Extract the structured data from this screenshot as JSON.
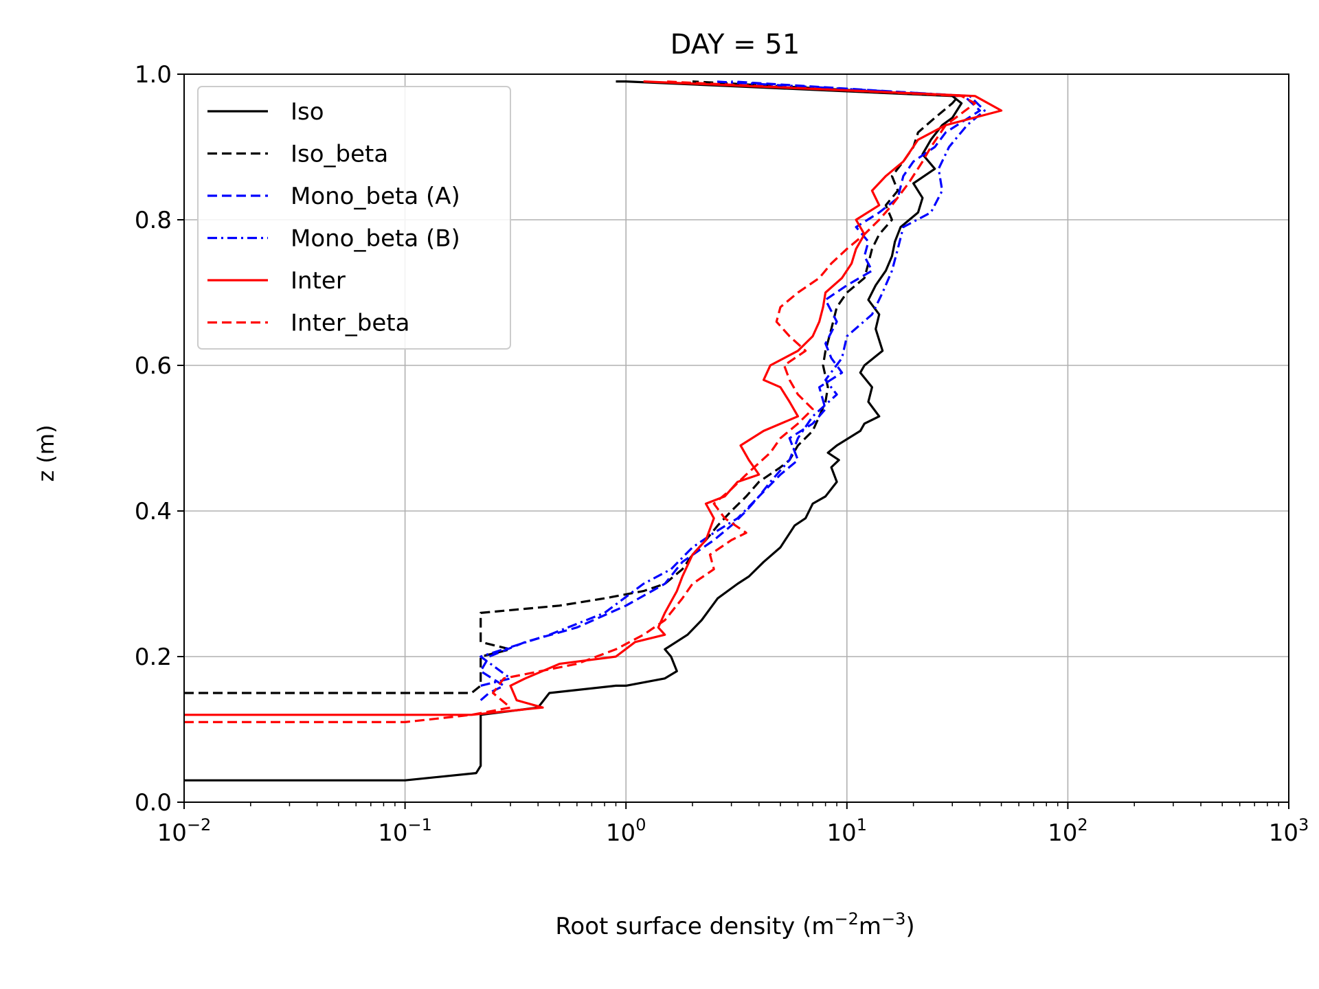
{
  "chart_data": {
    "type": "line",
    "title": "DAY = 51",
    "xlabel": "Root surface density (m",
    "xlabel_sup1": "−2",
    "xlabel_mid": "m",
    "xlabel_sup2": "−3",
    "xlabel_end": ")",
    "ylabel": "z (m)",
    "xscale": "log",
    "xlim": [
      0.01,
      1000
    ],
    "ylim": [
      0,
      1
    ],
    "grid": true,
    "legend_position": "upper-left",
    "x_ticks": [
      {
        "base": "10",
        "exp": "−2",
        "value": 0.01
      },
      {
        "base": "10",
        "exp": "−1",
        "value": 0.1
      },
      {
        "base": "10",
        "exp": "0",
        "value": 1
      },
      {
        "base": "10",
        "exp": "1",
        "value": 10
      },
      {
        "base": "10",
        "exp": "2",
        "value": 100
      },
      {
        "base": "10",
        "exp": "3",
        "value": 1000
      }
    ],
    "y_ticks": [
      "0.0",
      "0.2",
      "0.4",
      "0.6",
      "0.8",
      "1.0"
    ],
    "series": [
      {
        "name": "Iso",
        "color": "#000000",
        "dash": "solid",
        "points": [
          [
            0.01,
            0.03
          ],
          [
            0.1,
            0.03
          ],
          [
            0.21,
            0.04
          ],
          [
            0.22,
            0.05
          ],
          [
            0.22,
            0.12
          ],
          [
            0.4,
            0.13
          ],
          [
            0.45,
            0.15
          ],
          [
            0.9,
            0.16
          ],
          [
            1.0,
            0.16
          ],
          [
            1.5,
            0.17
          ],
          [
            1.7,
            0.18
          ],
          [
            1.6,
            0.2
          ],
          [
            1.5,
            0.21
          ],
          [
            1.9,
            0.23
          ],
          [
            2.2,
            0.25
          ],
          [
            2.6,
            0.28
          ],
          [
            3.2,
            0.3
          ],
          [
            3.6,
            0.31
          ],
          [
            4.2,
            0.33
          ],
          [
            5.0,
            0.35
          ],
          [
            5.8,
            0.38
          ],
          [
            6.5,
            0.39
          ],
          [
            7.0,
            0.41
          ],
          [
            8.0,
            0.42
          ],
          [
            9.0,
            0.44
          ],
          [
            8.5,
            0.46
          ],
          [
            9.2,
            0.47
          ],
          [
            8.2,
            0.48
          ],
          [
            9.0,
            0.49
          ],
          [
            11.5,
            0.51
          ],
          [
            12.0,
            0.52
          ],
          [
            14.0,
            0.53
          ],
          [
            12.5,
            0.55
          ],
          [
            13.0,
            0.57
          ],
          [
            11.5,
            0.59
          ],
          [
            12.0,
            0.6
          ],
          [
            14.5,
            0.62
          ],
          [
            13.5,
            0.65
          ],
          [
            14.0,
            0.67
          ],
          [
            12.5,
            0.69
          ],
          [
            13.5,
            0.71
          ],
          [
            15.0,
            0.73
          ],
          [
            16.0,
            0.75
          ],
          [
            16.5,
            0.77
          ],
          [
            17.5,
            0.79
          ],
          [
            21.0,
            0.81
          ],
          [
            22.0,
            0.83
          ],
          [
            20.0,
            0.85
          ],
          [
            25.0,
            0.87
          ],
          [
            22.0,
            0.89
          ],
          [
            24.0,
            0.91
          ],
          [
            27.0,
            0.93
          ],
          [
            30.0,
            0.94
          ],
          [
            33.0,
            0.96
          ],
          [
            30.0,
            0.97
          ],
          [
            1.0,
            0.99
          ],
          [
            0.9,
            0.99
          ]
        ]
      },
      {
        "name": "Iso_beta",
        "color": "#000000",
        "dash": "dashed",
        "points": [
          [
            0.01,
            0.15
          ],
          [
            0.2,
            0.15
          ],
          [
            0.22,
            0.16
          ],
          [
            0.22,
            0.2
          ],
          [
            0.3,
            0.21
          ],
          [
            0.22,
            0.22
          ],
          [
            0.22,
            0.26
          ],
          [
            0.5,
            0.27
          ],
          [
            0.8,
            0.28
          ],
          [
            1.2,
            0.29
          ],
          [
            1.5,
            0.3
          ],
          [
            1.8,
            0.32
          ],
          [
            2.0,
            0.34
          ],
          [
            2.3,
            0.36
          ],
          [
            2.6,
            0.38
          ],
          [
            3.0,
            0.4
          ],
          [
            3.5,
            0.42
          ],
          [
            4.0,
            0.44
          ],
          [
            5.0,
            0.46
          ],
          [
            5.5,
            0.47
          ],
          [
            6.0,
            0.49
          ],
          [
            7.0,
            0.51
          ],
          [
            7.5,
            0.53
          ],
          [
            8.0,
            0.55
          ],
          [
            8.2,
            0.57
          ],
          [
            7.8,
            0.6
          ],
          [
            8.0,
            0.62
          ],
          [
            8.5,
            0.65
          ],
          [
            9.0,
            0.68
          ],
          [
            10.0,
            0.7
          ],
          [
            12.0,
            0.72
          ],
          [
            12.5,
            0.74
          ],
          [
            13.0,
            0.76
          ],
          [
            14.0,
            0.78
          ],
          [
            16.0,
            0.8
          ],
          [
            15.0,
            0.82
          ],
          [
            17.0,
            0.84
          ],
          [
            16.0,
            0.86
          ],
          [
            18.0,
            0.88
          ],
          [
            20.0,
            0.9
          ],
          [
            21.0,
            0.92
          ],
          [
            25.0,
            0.94
          ],
          [
            30.0,
            0.96
          ],
          [
            32.0,
            0.97
          ],
          [
            2.0,
            0.99
          ]
        ]
      },
      {
        "name": "Mono_beta (A)",
        "color": "#0000ff",
        "dash": "dashed",
        "points": [
          [
            0.22,
            0.14
          ],
          [
            0.24,
            0.15
          ],
          [
            0.28,
            0.16
          ],
          [
            0.22,
            0.18
          ],
          [
            0.24,
            0.2
          ],
          [
            0.35,
            0.22
          ],
          [
            0.6,
            0.24
          ],
          [
            1.0,
            0.27
          ],
          [
            1.5,
            0.3
          ],
          [
            1.8,
            0.33
          ],
          [
            2.5,
            0.36
          ],
          [
            3.0,
            0.38
          ],
          [
            3.5,
            0.4
          ],
          [
            4.0,
            0.42
          ],
          [
            5.0,
            0.45
          ],
          [
            6.0,
            0.47
          ],
          [
            5.5,
            0.5
          ],
          [
            7.0,
            0.52
          ],
          [
            8.0,
            0.54
          ],
          [
            7.5,
            0.57
          ],
          [
            9.5,
            0.59
          ],
          [
            8.5,
            0.61
          ],
          [
            8.0,
            0.63
          ],
          [
            9.0,
            0.66
          ],
          [
            8.0,
            0.69
          ],
          [
            10.0,
            0.71
          ],
          [
            13.0,
            0.73
          ],
          [
            12.0,
            0.75
          ],
          [
            12.5,
            0.77
          ],
          [
            11.0,
            0.79
          ],
          [
            14.0,
            0.81
          ],
          [
            17.0,
            0.83
          ],
          [
            18.0,
            0.86
          ],
          [
            20.0,
            0.88
          ],
          [
            25.0,
            0.9
          ],
          [
            28.0,
            0.92
          ],
          [
            40.0,
            0.95
          ],
          [
            34.0,
            0.97
          ],
          [
            3.0,
            0.99
          ]
        ]
      },
      {
        "name": "Mono_beta (B)",
        "color": "#0000ff",
        "dash": "dashdot",
        "points": [
          [
            0.22,
            0.16
          ],
          [
            0.3,
            0.17
          ],
          [
            0.22,
            0.2
          ],
          [
            0.45,
            0.23
          ],
          [
            0.8,
            0.26
          ],
          [
            1.2,
            0.3
          ],
          [
            1.6,
            0.32
          ],
          [
            2.0,
            0.35
          ],
          [
            2.5,
            0.37
          ],
          [
            3.2,
            0.39
          ],
          [
            4.0,
            0.42
          ],
          [
            4.5,
            0.44
          ],
          [
            5.5,
            0.47
          ],
          [
            6.0,
            0.5
          ],
          [
            7.0,
            0.53
          ],
          [
            9.0,
            0.56
          ],
          [
            8.0,
            0.58
          ],
          [
            9.5,
            0.61
          ],
          [
            10.0,
            0.64
          ],
          [
            13.0,
            0.67
          ],
          [
            14.5,
            0.7
          ],
          [
            16.0,
            0.73
          ],
          [
            17.0,
            0.76
          ],
          [
            18.0,
            0.79
          ],
          [
            24.0,
            0.81
          ],
          [
            27.0,
            0.84
          ],
          [
            26.0,
            0.87
          ],
          [
            29.0,
            0.9
          ],
          [
            35.0,
            0.93
          ],
          [
            42.0,
            0.95
          ],
          [
            36.0,
            0.97
          ],
          [
            2.5,
            0.99
          ]
        ]
      },
      {
        "name": "Inter",
        "color": "#ff0000",
        "dash": "solid",
        "points": [
          [
            0.01,
            0.12
          ],
          [
            0.2,
            0.12
          ],
          [
            0.42,
            0.13
          ],
          [
            0.32,
            0.14
          ],
          [
            0.3,
            0.16
          ],
          [
            0.35,
            0.17
          ],
          [
            0.5,
            0.19
          ],
          [
            0.9,
            0.2
          ],
          [
            1.1,
            0.22
          ],
          [
            1.5,
            0.23
          ],
          [
            1.4,
            0.24
          ],
          [
            1.5,
            0.26
          ],
          [
            1.7,
            0.29
          ],
          [
            1.8,
            0.31
          ],
          [
            2.0,
            0.34
          ],
          [
            2.3,
            0.36
          ],
          [
            2.5,
            0.39
          ],
          [
            2.3,
            0.41
          ],
          [
            2.8,
            0.42
          ],
          [
            3.2,
            0.44
          ],
          [
            4.0,
            0.45
          ],
          [
            3.6,
            0.47
          ],
          [
            3.3,
            0.49
          ],
          [
            4.2,
            0.51
          ],
          [
            6.0,
            0.53
          ],
          [
            5.5,
            0.55
          ],
          [
            5.0,
            0.57
          ],
          [
            4.2,
            0.58
          ],
          [
            4.5,
            0.6
          ],
          [
            6.0,
            0.62
          ],
          [
            7.0,
            0.64
          ],
          [
            7.5,
            0.66
          ],
          [
            7.8,
            0.68
          ],
          [
            8.0,
            0.7
          ],
          [
            9.5,
            0.72
          ],
          [
            10.5,
            0.74
          ],
          [
            11.0,
            0.76
          ],
          [
            12.0,
            0.78
          ],
          [
            11.0,
            0.8
          ],
          [
            14.0,
            0.82
          ],
          [
            13.0,
            0.84
          ],
          [
            15.0,
            0.86
          ],
          [
            18.0,
            0.88
          ],
          [
            21.0,
            0.91
          ],
          [
            28.0,
            0.93
          ],
          [
            50.0,
            0.95
          ],
          [
            38.0,
            0.97
          ],
          [
            1.2,
            0.99
          ]
        ]
      },
      {
        "name": "Inter_beta",
        "color": "#ff0000",
        "dash": "dashed",
        "points": [
          [
            0.01,
            0.11
          ],
          [
            0.1,
            0.11
          ],
          [
            0.2,
            0.12
          ],
          [
            0.3,
            0.13
          ],
          [
            0.25,
            0.15
          ],
          [
            0.28,
            0.17
          ],
          [
            0.6,
            0.19
          ],
          [
            0.9,
            0.21
          ],
          [
            1.2,
            0.23
          ],
          [
            1.5,
            0.25
          ],
          [
            1.8,
            0.28
          ],
          [
            2.0,
            0.3
          ],
          [
            2.5,
            0.32
          ],
          [
            2.4,
            0.34
          ],
          [
            3.0,
            0.36
          ],
          [
            3.5,
            0.37
          ],
          [
            2.8,
            0.39
          ],
          [
            2.5,
            0.41
          ],
          [
            3.0,
            0.43
          ],
          [
            3.5,
            0.45
          ],
          [
            4.5,
            0.48
          ],
          [
            5.0,
            0.5
          ],
          [
            6.0,
            0.52
          ],
          [
            7.0,
            0.54
          ],
          [
            6.0,
            0.56
          ],
          [
            5.5,
            0.58
          ],
          [
            5.2,
            0.6
          ],
          [
            6.5,
            0.62
          ],
          [
            5.5,
            0.64
          ],
          [
            4.8,
            0.66
          ],
          [
            5.0,
            0.68
          ],
          [
            6.0,
            0.7
          ],
          [
            7.5,
            0.72
          ],
          [
            8.5,
            0.74
          ],
          [
            10.0,
            0.76
          ],
          [
            12.0,
            0.78
          ],
          [
            14.0,
            0.8
          ],
          [
            16.0,
            0.82
          ],
          [
            19.0,
            0.85
          ],
          [
            22.0,
            0.88
          ],
          [
            24.0,
            0.9
          ],
          [
            28.0,
            0.93
          ],
          [
            38.0,
            0.96
          ],
          [
            33.0,
            0.97
          ],
          [
            1.5,
            0.99
          ]
        ]
      }
    ]
  }
}
